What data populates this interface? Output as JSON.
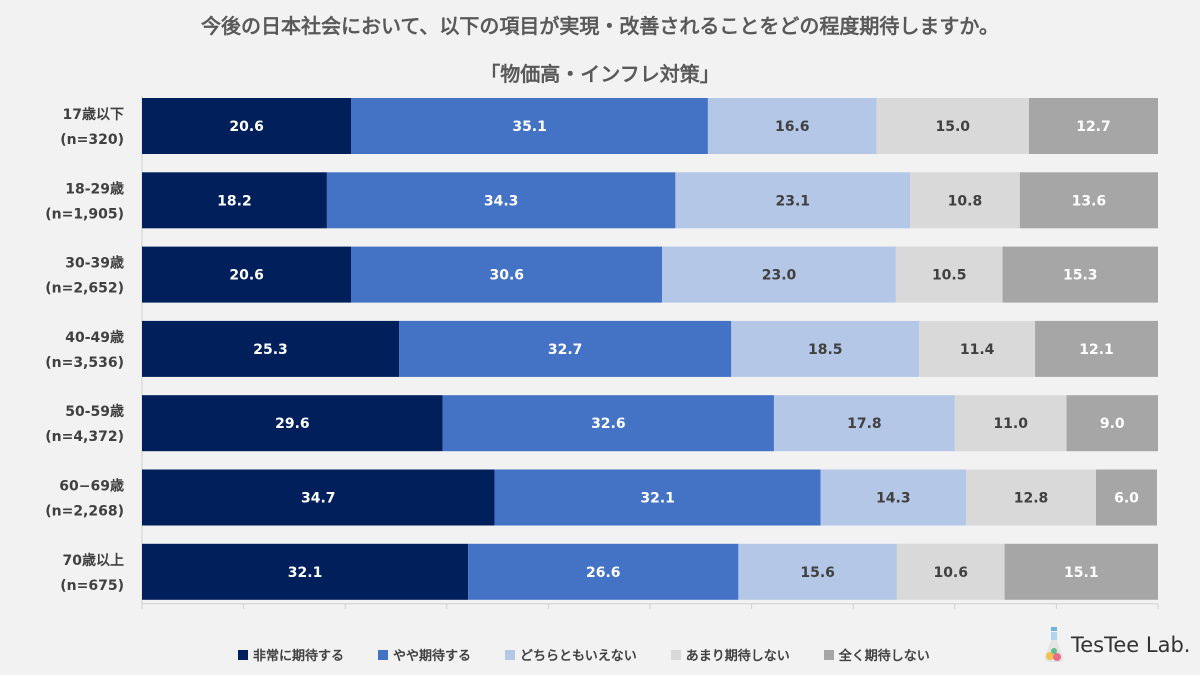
{
  "title": "今後の日本社会において、以下の項目が実現・改善されることをどの程度期待しますか。",
  "subtitle": "「物価高・インフレ対策」",
  "brand": "TesTee Lab.",
  "chart_data": {
    "type": "bar",
    "orientation": "horizontal",
    "stacked": true,
    "xlim": [
      0,
      100
    ],
    "categories": [
      {
        "name": "17歳以下",
        "n": "(n=320)"
      },
      {
        "name": "18-29歳",
        "n": "(n=1,905)"
      },
      {
        "name": "30-39歳",
        "n": "(n=2,652)"
      },
      {
        "name": "40-49歳",
        "n": "(n=3,536)"
      },
      {
        "name": "50-59歳",
        "n": "(n=4,372)"
      },
      {
        "name": "60−69歳",
        "n": "(n=2,268)"
      },
      {
        "name": "70歳以上",
        "n": "(n=675)"
      }
    ],
    "series": [
      {
        "name": "非常に期待する",
        "color": "#001f5b",
        "label_color": "#ffffff",
        "values": [
          20.6,
          18.2,
          20.6,
          25.3,
          29.6,
          34.7,
          32.1
        ]
      },
      {
        "name": "やや期待する",
        "color": "#4472c4",
        "label_color": "#ffffff",
        "values": [
          35.1,
          34.3,
          30.6,
          32.7,
          32.6,
          32.1,
          26.6
        ]
      },
      {
        "name": "どちらともいえない",
        "color": "#b4c7e7",
        "label_color": "#404040",
        "values": [
          16.6,
          23.1,
          23.0,
          18.5,
          17.8,
          14.3,
          15.6
        ]
      },
      {
        "name": "あまり期待しない",
        "color": "#d9d9d9",
        "label_color": "#404040",
        "values": [
          15.0,
          10.8,
          10.5,
          11.4,
          11.0,
          12.8,
          10.6
        ]
      },
      {
        "name": "全く期待しない",
        "color": "#a6a6a6",
        "label_color": "#ffffff",
        "values": [
          12.7,
          13.6,
          15.3,
          12.1,
          9.0,
          6.0,
          15.1
        ]
      }
    ]
  }
}
